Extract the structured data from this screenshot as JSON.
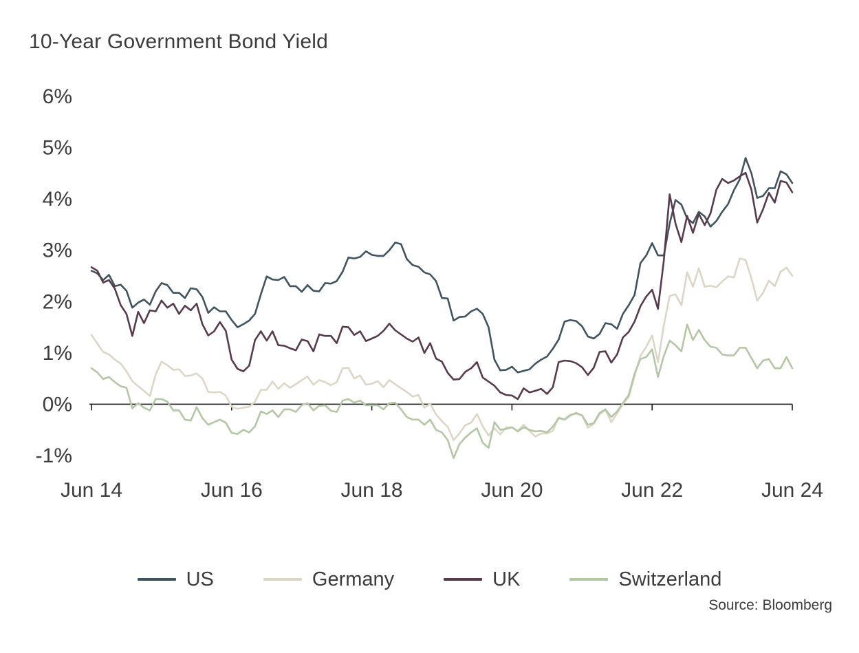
{
  "chart_data": {
    "type": "line",
    "title": "10-Year Government Bond Yield",
    "source": "Source: Bloomberg",
    "xlabel": "",
    "ylabel": "",
    "grid": false,
    "legend_position": "bottom",
    "ylim": [
      -1,
      6
    ],
    "x_frequency": "monthly",
    "x_range": [
      "Jun 2014",
      "Jun 2024"
    ],
    "y_ticks": [
      {
        "value": 6,
        "label": "6%"
      },
      {
        "value": 5,
        "label": "5%"
      },
      {
        "value": 4,
        "label": "4%"
      },
      {
        "value": 3,
        "label": "3%"
      },
      {
        "value": 2,
        "label": "2%"
      },
      {
        "value": 1,
        "label": "1%"
      },
      {
        "value": 0,
        "label": "0%"
      },
      {
        "value": -1,
        "label": "-1%"
      }
    ],
    "x_ticks": [
      {
        "index": 0,
        "label": "Jun 14"
      },
      {
        "index": 24,
        "label": "Jun 16"
      },
      {
        "index": 48,
        "label": "Jun 18"
      },
      {
        "index": 72,
        "label": "Jun 20"
      },
      {
        "index": 96,
        "label": "Jun 22"
      },
      {
        "index": 120,
        "label": "Jun 24"
      }
    ],
    "series": [
      {
        "name": "US",
        "color": "#3f545f",
        "values": [
          2.6,
          2.55,
          2.42,
          2.52,
          2.3,
          2.33,
          2.21,
          1.88,
          1.98,
          2.04,
          1.94,
          2.2,
          2.36,
          2.32,
          2.17,
          2.17,
          2.07,
          2.26,
          2.24,
          2.09,
          1.78,
          1.89,
          1.81,
          1.81,
          1.64,
          1.5,
          1.56,
          1.63,
          1.76,
          2.14,
          2.49,
          2.43,
          2.42,
          2.48,
          2.3,
          2.3,
          2.19,
          2.32,
          2.21,
          2.2,
          2.36,
          2.35,
          2.4,
          2.58,
          2.86,
          2.84,
          2.87,
          2.98,
          2.91,
          2.89,
          2.89,
          3.0,
          3.15,
          3.12,
          2.83,
          2.71,
          2.68,
          2.57,
          2.53,
          2.4,
          2.07,
          2.06,
          1.63,
          1.7,
          1.71,
          1.81,
          1.86,
          1.76,
          1.5,
          0.87,
          0.66,
          0.67,
          0.73,
          0.62,
          0.65,
          0.68,
          0.79,
          0.87,
          0.93,
          1.08,
          1.26,
          1.61,
          1.64,
          1.62,
          1.52,
          1.32,
          1.28,
          1.37,
          1.58,
          1.56,
          1.47,
          1.76,
          1.93,
          2.13,
          2.75,
          2.9,
          3.14,
          2.9,
          2.9,
          3.52,
          3.98,
          3.89,
          3.62,
          3.53,
          3.75,
          3.66,
          3.46,
          3.57,
          3.75,
          3.9,
          4.17,
          4.38,
          4.8,
          4.5,
          4.02,
          4.06,
          4.21,
          4.21,
          4.54,
          4.48,
          4.31
        ]
      },
      {
        "name": "Germany",
        "color": "#dcd6c6",
        "values": [
          1.35,
          1.18,
          1.02,
          0.97,
          0.87,
          0.79,
          0.64,
          0.45,
          0.35,
          0.26,
          0.16,
          0.58,
          0.83,
          0.76,
          0.67,
          0.68,
          0.55,
          0.56,
          0.6,
          0.5,
          0.24,
          0.23,
          0.24,
          0.17,
          -0.05,
          -0.09,
          -0.07,
          -0.05,
          0.05,
          0.28,
          0.28,
          0.44,
          0.3,
          0.41,
          0.32,
          0.39,
          0.47,
          0.54,
          0.38,
          0.47,
          0.43,
          0.37,
          0.43,
          0.7,
          0.71,
          0.5,
          0.56,
          0.38,
          0.4,
          0.45,
          0.33,
          0.47,
          0.39,
          0.31,
          0.24,
          0.15,
          0.18,
          -0.07,
          0.01,
          -0.2,
          -0.33,
          -0.44,
          -0.7,
          -0.57,
          -0.41,
          -0.36,
          -0.19,
          -0.43,
          -0.61,
          -0.47,
          -0.59,
          -0.45,
          -0.45,
          -0.52,
          -0.4,
          -0.52,
          -0.63,
          -0.57,
          -0.57,
          -0.52,
          -0.26,
          -0.29,
          -0.2,
          -0.19,
          -0.21,
          -0.46,
          -0.38,
          -0.2,
          -0.11,
          -0.35,
          -0.18,
          0.01,
          0.14,
          0.55,
          0.94,
          1.12,
          1.34,
          0.82,
          1.54,
          2.11,
          2.14,
          1.93,
          2.57,
          2.29,
          2.65,
          2.29,
          2.31,
          2.28,
          2.39,
          2.49,
          2.47,
          2.84,
          2.81,
          2.45,
          2.02,
          2.17,
          2.41,
          2.3,
          2.58,
          2.66,
          2.5
        ]
      },
      {
        "name": "UK",
        "color": "#573b4c",
        "values": [
          2.67,
          2.6,
          2.37,
          2.42,
          2.25,
          1.93,
          1.76,
          1.33,
          1.8,
          1.58,
          1.83,
          1.81,
          2.02,
          1.88,
          1.96,
          1.76,
          1.92,
          1.83,
          1.96,
          1.56,
          1.34,
          1.42,
          1.6,
          1.43,
          0.87,
          0.69,
          0.64,
          0.75,
          1.25,
          1.42,
          1.24,
          1.42,
          1.15,
          1.14,
          1.09,
          1.05,
          1.26,
          1.23,
          1.03,
          1.36,
          1.33,
          1.33,
          1.19,
          1.51,
          1.5,
          1.35,
          1.42,
          1.23,
          1.28,
          1.33,
          1.43,
          1.57,
          1.44,
          1.36,
          1.28,
          1.22,
          1.3,
          1.0,
          1.19,
          0.89,
          0.83,
          0.61,
          0.48,
          0.49,
          0.63,
          0.7,
          0.82,
          0.52,
          0.44,
          0.36,
          0.23,
          0.18,
          0.17,
          0.1,
          0.31,
          0.23,
          0.26,
          0.3,
          0.2,
          0.33,
          0.82,
          0.85,
          0.84,
          0.8,
          0.72,
          0.57,
          0.71,
          1.02,
          1.03,
          0.81,
          0.97,
          1.3,
          1.41,
          1.61,
          1.91,
          2.1,
          2.23,
          1.86,
          2.8,
          4.09,
          3.52,
          3.16,
          3.67,
          3.34,
          3.71,
          3.49,
          3.72,
          4.18,
          4.39,
          4.31,
          4.36,
          4.44,
          4.51,
          4.18,
          3.54,
          3.8,
          4.12,
          3.93,
          4.35,
          4.32,
          4.13
        ]
      },
      {
        "name": "Switzerland",
        "color": "#b4c7a5",
        "values": [
          0.7,
          0.62,
          0.49,
          0.53,
          0.43,
          0.35,
          0.32,
          -0.08,
          0.02,
          -0.07,
          -0.12,
          0.1,
          0.1,
          0.05,
          -0.12,
          -0.12,
          -0.3,
          -0.32,
          -0.06,
          -0.27,
          -0.4,
          -0.35,
          -0.3,
          -0.36,
          -0.56,
          -0.58,
          -0.5,
          -0.55,
          -0.43,
          -0.14,
          -0.19,
          -0.12,
          -0.25,
          -0.1,
          -0.1,
          -0.15,
          -0.02,
          0.02,
          -0.12,
          -0.03,
          -0.02,
          -0.13,
          -0.15,
          0.07,
          0.1,
          0.03,
          0.07,
          -0.02,
          -0.02,
          -0.02,
          -0.1,
          0.02,
          0.03,
          -0.1,
          -0.25,
          -0.3,
          -0.3,
          -0.4,
          -0.3,
          -0.5,
          -0.55,
          -0.7,
          -1.05,
          -0.78,
          -0.65,
          -0.55,
          -0.47,
          -0.75,
          -0.85,
          -0.35,
          -0.5,
          -0.48,
          -0.45,
          -0.53,
          -0.45,
          -0.5,
          -0.53,
          -0.52,
          -0.55,
          -0.44,
          -0.27,
          -0.3,
          -0.22,
          -0.17,
          -0.22,
          -0.4,
          -0.37,
          -0.17,
          -0.1,
          -0.25,
          -0.14,
          0.02,
          0.18,
          0.6,
          0.88,
          0.92,
          1.07,
          0.53,
          0.94,
          1.24,
          1.15,
          1.03,
          1.55,
          1.25,
          1.45,
          1.25,
          1.12,
          1.1,
          0.97,
          0.95,
          0.95,
          1.1,
          1.1,
          0.9,
          0.7,
          0.85,
          0.88,
          0.7,
          0.7,
          0.92,
          0.7
        ]
      }
    ]
  }
}
